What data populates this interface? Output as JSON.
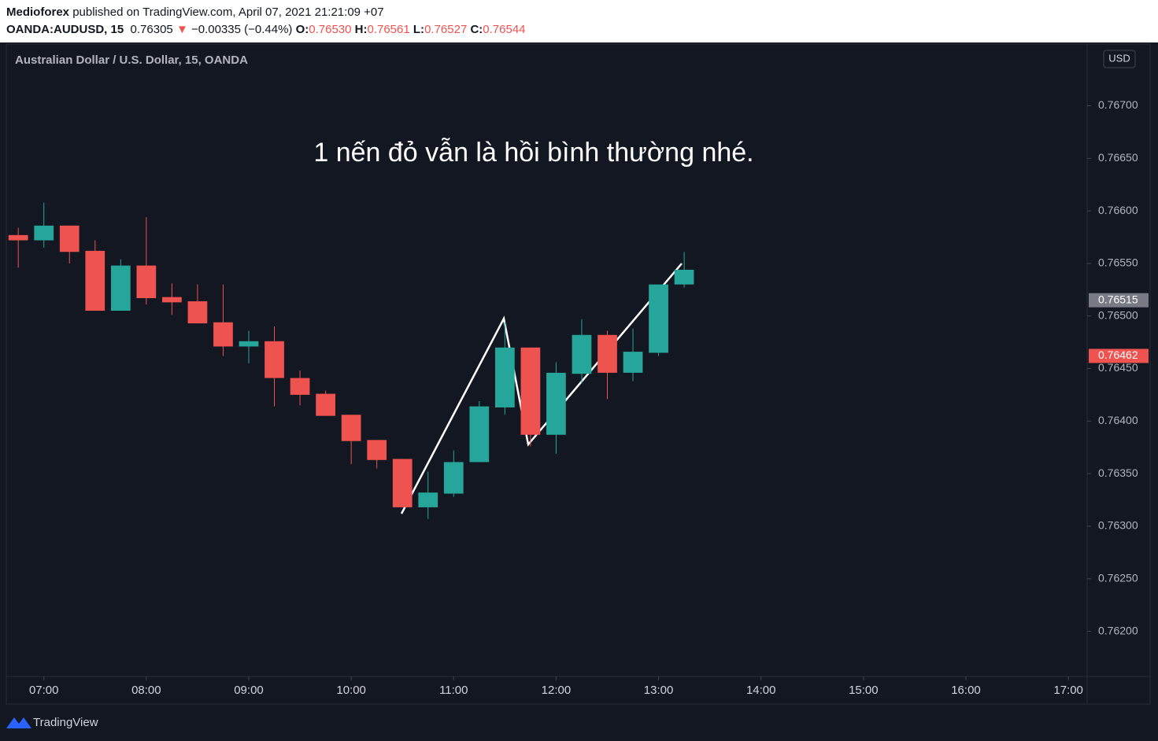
{
  "header": {
    "author": "Medioforex",
    "published": "published on TradingView.com, April 07, 2021 21:21:09 +07",
    "symbol": "OANDA:AUDUSD, 15",
    "last": "0.76305",
    "arrow": "▼",
    "change": "−0.00335 (−0.44%)",
    "ohlc": [
      {
        "label": "O:",
        "value": "0.76530"
      },
      {
        "label": "H:",
        "value": "0.76561"
      },
      {
        "label": "L:",
        "value": "0.76527"
      },
      {
        "label": "C:",
        "value": "0.76544"
      }
    ]
  },
  "footer": {
    "brand": "TradingView"
  },
  "chart_data": {
    "type": "candlestick",
    "title": "Australian Dollar / U.S. Dollar, 15, OANDA",
    "annotation": "1 nến đỏ vẫn là hồi bình thường nhé.",
    "currency": "USD",
    "up_color": "#26a69a",
    "down_color": "#ef5350",
    "x": [
      "06:45",
      "07:00",
      "07:15",
      "07:30",
      "07:45",
      "08:00",
      "08:15",
      "08:30",
      "08:45",
      "09:00",
      "09:15",
      "09:30",
      "09:45",
      "10:00",
      "10:15",
      "10:30",
      "10:45",
      "11:00",
      "11:15",
      "11:30",
      "11:45",
      "12:00",
      "12:15",
      "12:30",
      "12:45",
      "13:00",
      "13:15"
    ],
    "open": [
      0.76577,
      0.76572,
      0.76586,
      0.76562,
      0.76505,
      0.76548,
      0.76518,
      0.76514,
      0.76494,
      0.76471,
      0.76476,
      0.76441,
      0.76426,
      0.76406,
      0.76382,
      0.76364,
      0.76318,
      0.76331,
      0.76361,
      0.76413,
      0.7647,
      0.76387,
      0.76445,
      0.76482,
      0.76446,
      0.76465,
      0.7653
    ],
    "high": [
      0.76584,
      0.76608,
      0.76586,
      0.76572,
      0.76554,
      0.76594,
      0.76531,
      0.7653,
      0.7653,
      0.76486,
      0.7649,
      0.76448,
      0.76429,
      0.76406,
      0.76382,
      0.76364,
      0.76352,
      0.76372,
      0.76419,
      0.76494,
      0.7647,
      0.76456,
      0.76497,
      0.76486,
      0.76488,
      0.7653,
      0.76561
    ],
    "low": [
      0.76546,
      0.76565,
      0.7655,
      0.76505,
      0.76505,
      0.76511,
      0.76501,
      0.76493,
      0.76462,
      0.76455,
      0.76414,
      0.76415,
      0.76405,
      0.76359,
      0.76355,
      0.76318,
      0.76307,
      0.76328,
      0.76361,
      0.76406,
      0.76376,
      0.76369,
      0.76436,
      0.76421,
      0.76438,
      0.76462,
      0.76527
    ],
    "close": [
      0.76572,
      0.76586,
      0.76561,
      0.76505,
      0.76548,
      0.76517,
      0.76513,
      0.76493,
      0.76471,
      0.76476,
      0.76441,
      0.76425,
      0.76405,
      0.76381,
      0.76363,
      0.76318,
      0.76332,
      0.76361,
      0.76414,
      0.7647,
      0.76387,
      0.76446,
      0.76482,
      0.76446,
      0.76466,
      0.7653,
      0.76544
    ],
    "xlim": [
      "06:38",
      "17:11"
    ],
    "xticks": [
      "07:00",
      "08:00",
      "09:00",
      "10:00",
      "11:00",
      "12:00",
      "13:00",
      "14:00",
      "15:00",
      "16:00",
      "17:00"
    ],
    "ylim": [
      0.76157,
      0.76758
    ],
    "yticks": [
      {
        "value": 0.762,
        "label": "0.76200"
      },
      {
        "value": 0.7625,
        "label": "0.76250"
      },
      {
        "value": 0.763,
        "label": "0.76300"
      },
      {
        "value": 0.7635,
        "label": "0.76350"
      },
      {
        "value": 0.764,
        "label": "0.76400"
      },
      {
        "value": 0.7645,
        "label": "0.76450"
      },
      {
        "value": 0.765,
        "label": "0.76500"
      },
      {
        "value": 0.7655,
        "label": "0.76550"
      },
      {
        "value": 0.766,
        "label": "0.76600"
      },
      {
        "value": 0.7665,
        "label": "0.76650"
      },
      {
        "value": 0.767,
        "label": "0.76700"
      }
    ],
    "price_labels": [
      {
        "value": 0.76515,
        "color": "#787b86"
      },
      {
        "value": 0.76462,
        "color": "#ef5350"
      }
    ]
  }
}
